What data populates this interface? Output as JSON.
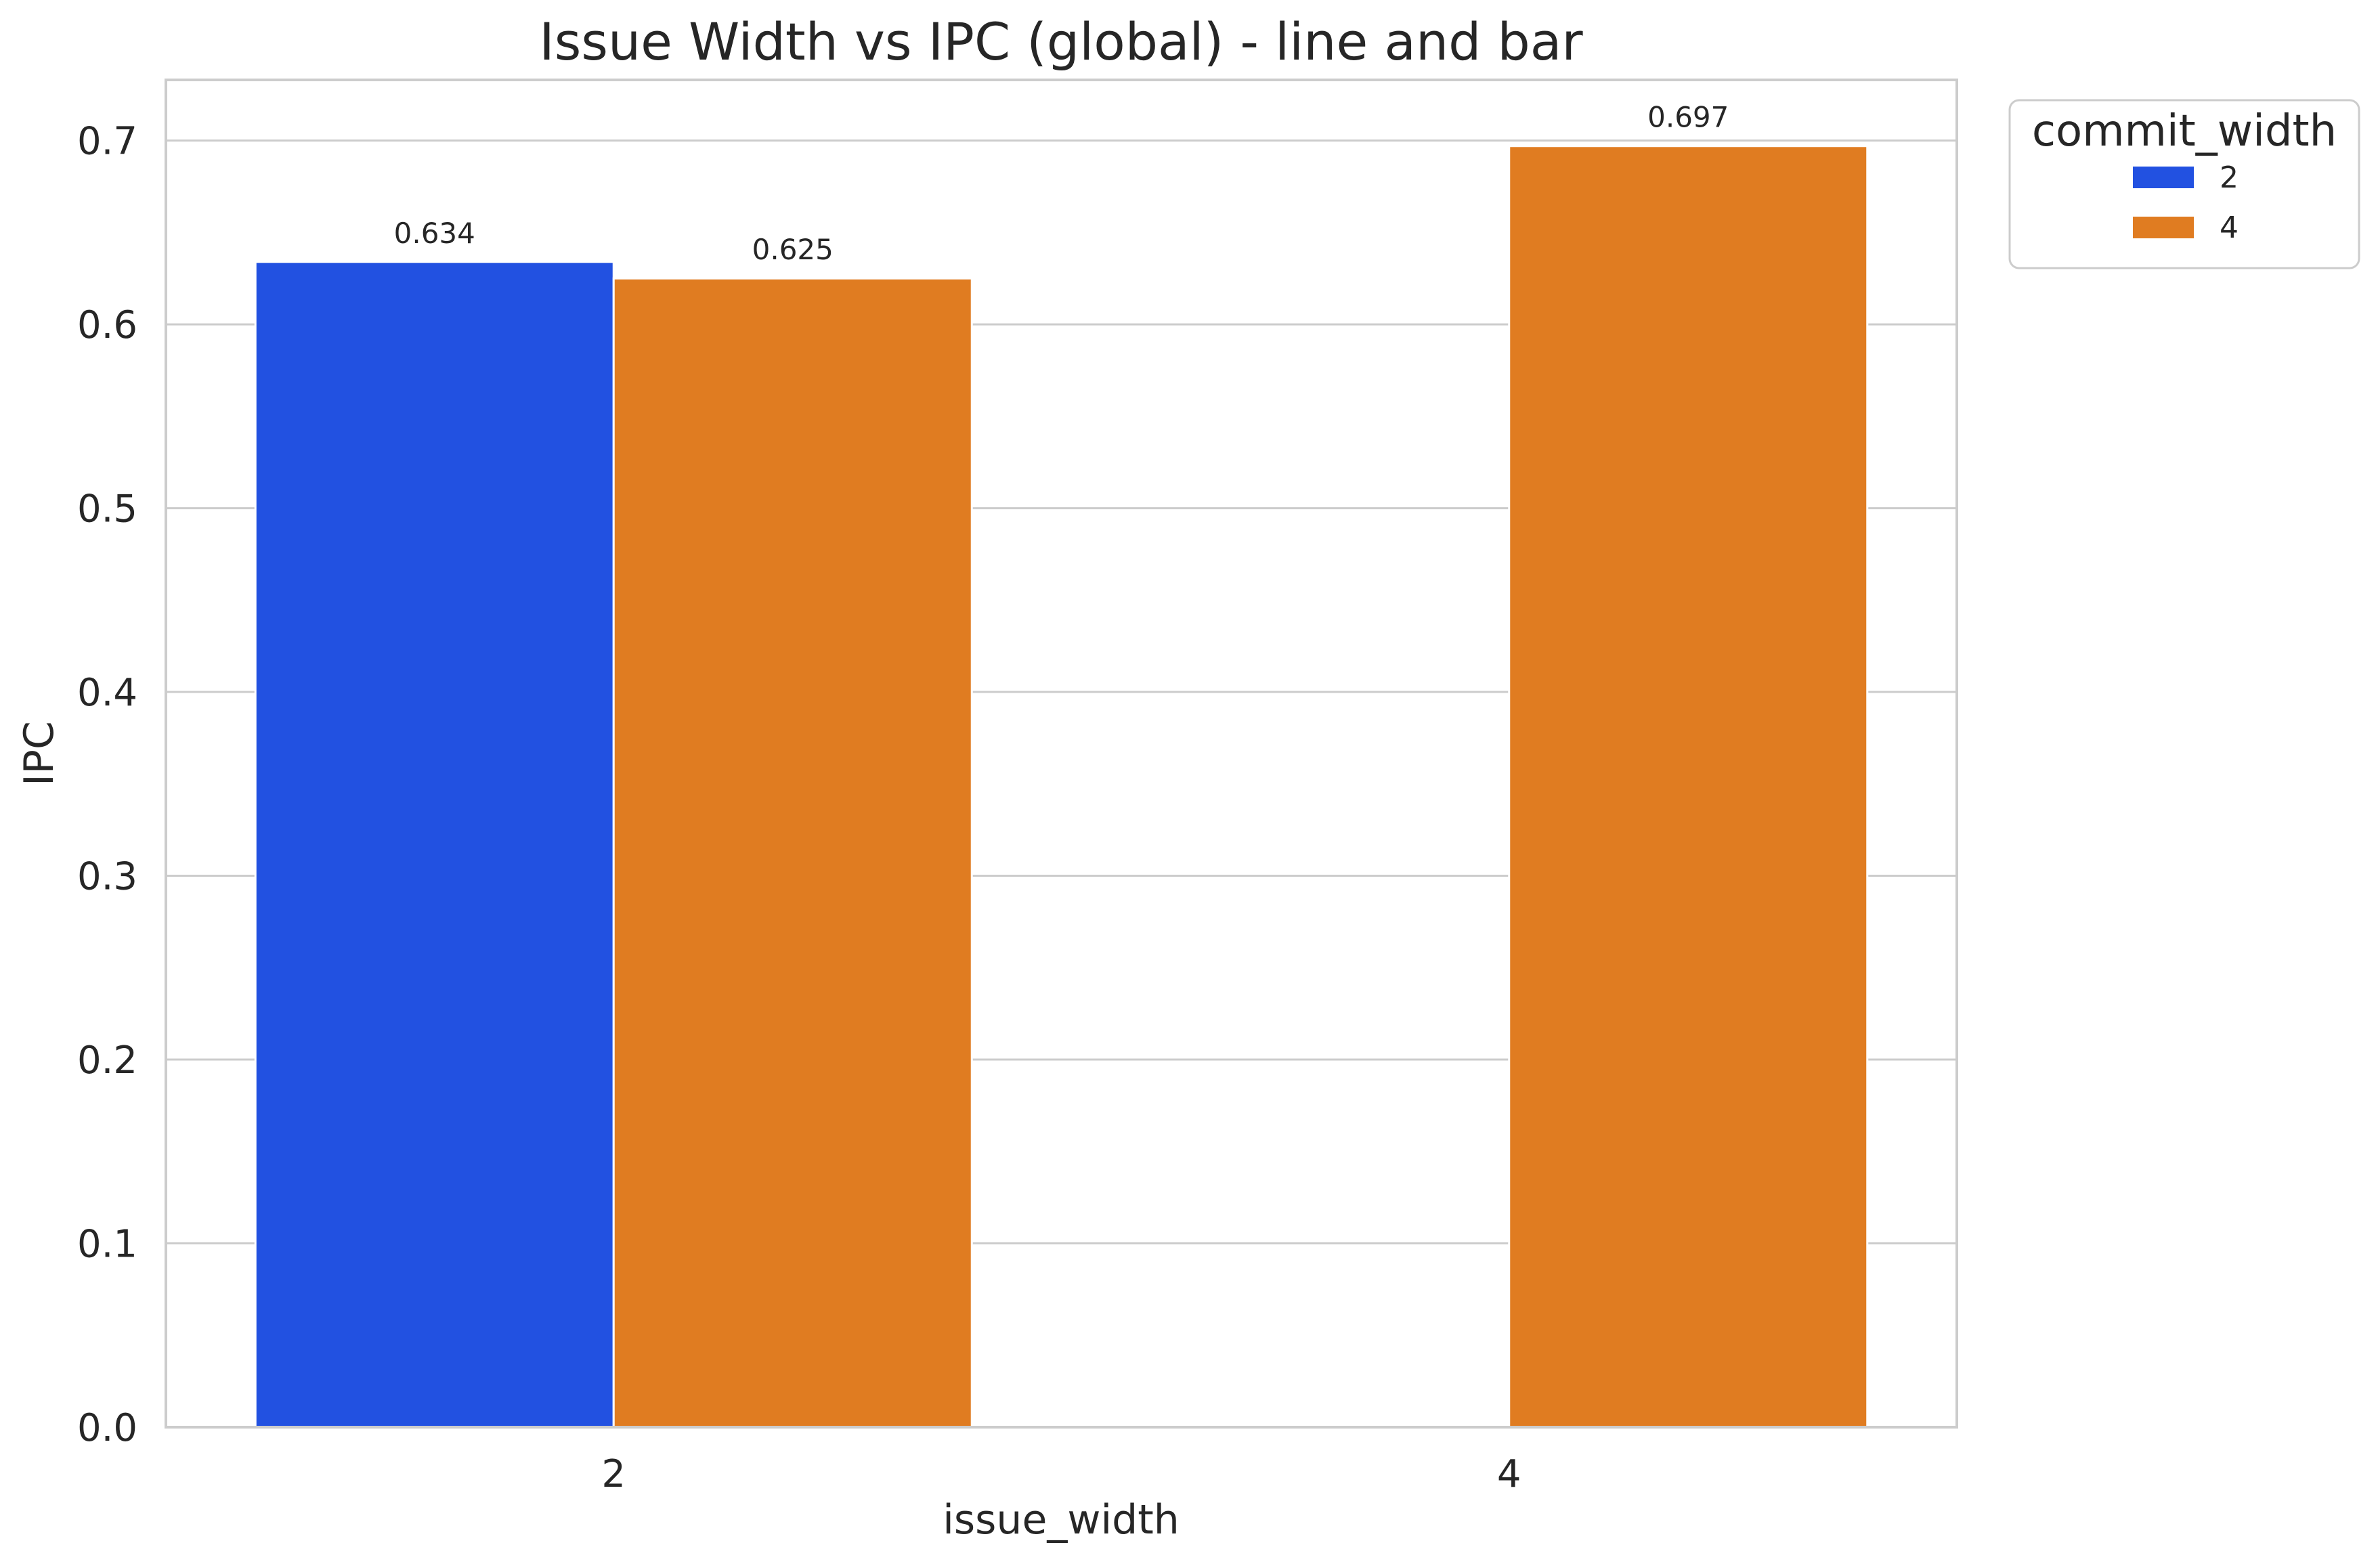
{
  "chart_data": {
    "type": "bar",
    "title": "Issue Width vs IPC (global) - line and bar",
    "xlabel": "issue_width",
    "ylabel": "IPC",
    "categories": [
      "2",
      "4"
    ],
    "ylim": [
      0,
      0.733
    ],
    "yticks": [
      0.0,
      0.1,
      0.2,
      0.3,
      0.4,
      0.5,
      0.6,
      0.7
    ],
    "ytick_labels": [
      "0.0",
      "0.1",
      "0.2",
      "0.3",
      "0.4",
      "0.5",
      "0.6",
      "0.7"
    ],
    "grid": "horizontal",
    "legend": {
      "title": "commit_width",
      "placement": "outside-top-right"
    },
    "series": [
      {
        "name": "2",
        "color": "#2251e1",
        "values": [
          0.634,
          null
        ],
        "labels": [
          "0.634",
          ""
        ]
      },
      {
        "name": "4",
        "color": "#e07c21",
        "values": [
          0.625,
          0.697
        ],
        "labels": [
          "0.625",
          "0.697"
        ]
      }
    ]
  }
}
